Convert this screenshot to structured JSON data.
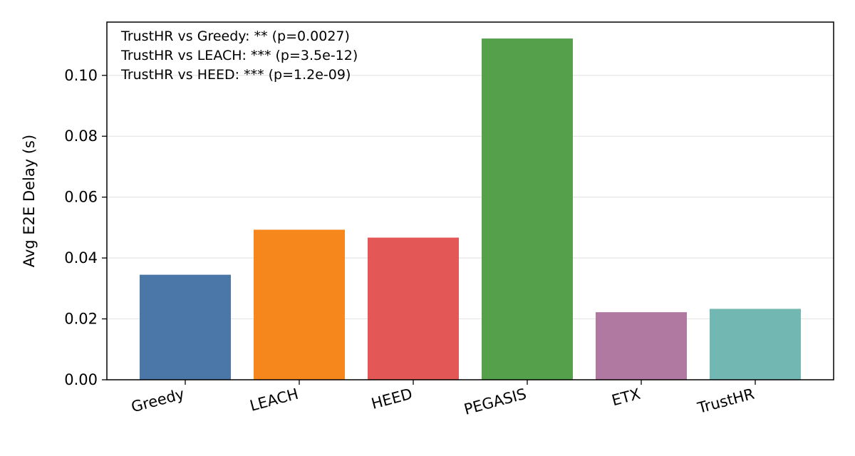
{
  "chart_data": {
    "type": "bar",
    "categories": [
      "Greedy",
      "LEACH",
      "HEED",
      "PEGASIS",
      "ETX",
      "TrustHR"
    ],
    "values": [
      0.0345,
      0.0493,
      0.0467,
      0.1121,
      0.0222,
      0.0233
    ],
    "colors": [
      "#4a77a8",
      "#f5871d",
      "#e35757",
      "#55a14b",
      "#b079a2",
      "#72b7b2"
    ],
    "xlabel": "",
    "ylabel": "Avg E2E Delay (s)",
    "ylim": [
      0,
      0.1175
    ],
    "yticks": [
      0.0,
      0.02,
      0.04,
      0.06,
      0.08,
      0.1
    ],
    "ytick_labels": [
      "0.00",
      "0.02",
      "0.04",
      "0.06",
      "0.08",
      "0.10"
    ],
    "grid": "y",
    "annotations": [
      "TrustHR vs Greedy: ** (p=0.0027)",
      "TrustHR vs LEACH: *** (p=3.5e-12)",
      "TrustHR vs HEED: *** (p=1.2e-09)"
    ]
  }
}
